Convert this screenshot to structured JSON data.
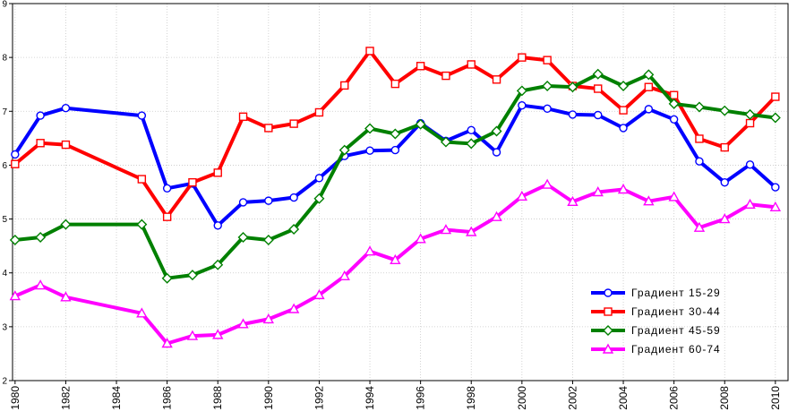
{
  "chart_data": {
    "type": "line",
    "title": "",
    "xlabel": "",
    "ylabel": "",
    "xlim": [
      1979.9,
      2010.5
    ],
    "ylim": [
      2,
      9
    ],
    "yticks": [
      2,
      3,
      4,
      5,
      6,
      7,
      8,
      9
    ],
    "xticks": [
      1980,
      1982,
      1984,
      1986,
      1988,
      1990,
      1992,
      1994,
      1996,
      1998,
      2000,
      2002,
      2004,
      2006,
      2008,
      2010
    ],
    "grid": true,
    "legend_position": "bottom-right",
    "series": [
      {
        "name": "Градиент 15-29",
        "color": "#0000ff",
        "marker": "circle",
        "x": [
          1980,
          1981,
          1982,
          1985,
          1986,
          1987,
          1988,
          1989,
          1990,
          1991,
          1992,
          1993,
          1994,
          1995,
          1996,
          1997,
          1998,
          1999,
          2000,
          2001,
          2002,
          2003,
          2004,
          2005,
          2006,
          2007,
          2008,
          2009,
          2010
        ],
        "values": [
          6.2,
          6.92,
          7.06,
          6.92,
          5.57,
          5.66,
          4.88,
          5.31,
          5.34,
          5.4,
          5.76,
          6.17,
          6.27,
          6.28,
          6.78,
          6.45,
          6.65,
          6.24,
          7.11,
          7.05,
          6.94,
          6.93,
          6.69,
          7.04,
          6.85,
          6.07,
          5.68,
          6.01,
          5.59
        ]
      },
      {
        "name": "Градиент 30-44",
        "color": "#ff0000",
        "marker": "square",
        "x": [
          1980,
          1981,
          1982,
          1985,
          1986,
          1987,
          1988,
          1989,
          1990,
          1991,
          1992,
          1993,
          1994,
          1995,
          1996,
          1997,
          1998,
          1999,
          2000,
          2001,
          2002,
          2003,
          2004,
          2005,
          2006,
          2007,
          2008,
          2009,
          2010
        ],
        "values": [
          6.02,
          6.41,
          6.38,
          5.74,
          5.04,
          5.68,
          5.86,
          6.9,
          6.69,
          6.77,
          6.98,
          7.48,
          8.12,
          7.51,
          7.84,
          7.66,
          7.87,
          7.59,
          8.0,
          7.95,
          7.47,
          7.42,
          7.02,
          7.45,
          7.3,
          6.49,
          6.33,
          6.78,
          7.27
        ]
      },
      {
        "name": "Градиент 45-59",
        "color": "#008000",
        "marker": "diamond",
        "x": [
          1980,
          1981,
          1982,
          1985,
          1986,
          1987,
          1988,
          1989,
          1990,
          1991,
          1992,
          1993,
          1994,
          1995,
          1996,
          1997,
          1998,
          1999,
          2000,
          2001,
          2002,
          2003,
          2004,
          2005,
          2006,
          2007,
          2008,
          2009,
          2010
        ],
        "values": [
          4.61,
          4.66,
          4.9,
          4.9,
          3.9,
          3.96,
          4.15,
          4.66,
          4.61,
          4.81,
          5.38,
          6.28,
          6.68,
          6.58,
          6.76,
          6.43,
          6.4,
          6.63,
          7.38,
          7.47,
          7.45,
          7.69,
          7.47,
          7.68,
          7.14,
          7.08,
          7.01,
          6.94,
          6.88
        ]
      },
      {
        "name": "Градиент 60-74",
        "color": "#ff00ff",
        "marker": "triangle",
        "x": [
          1980,
          1981,
          1982,
          1985,
          1986,
          1987,
          1988,
          1989,
          1990,
          1991,
          1992,
          1993,
          1994,
          1995,
          1996,
          1997,
          1998,
          1999,
          2000,
          2001,
          2002,
          2003,
          2004,
          2005,
          2006,
          2007,
          2008,
          2009,
          2010
        ],
        "values": [
          3.57,
          3.77,
          3.55,
          3.25,
          2.69,
          2.83,
          2.85,
          3.05,
          3.14,
          3.33,
          3.59,
          3.94,
          4.4,
          4.24,
          4.63,
          4.8,
          4.76,
          5.04,
          5.42,
          5.64,
          5.32,
          5.5,
          5.55,
          5.33,
          5.41,
          4.84,
          5.0,
          5.27,
          5.22
        ]
      }
    ]
  }
}
